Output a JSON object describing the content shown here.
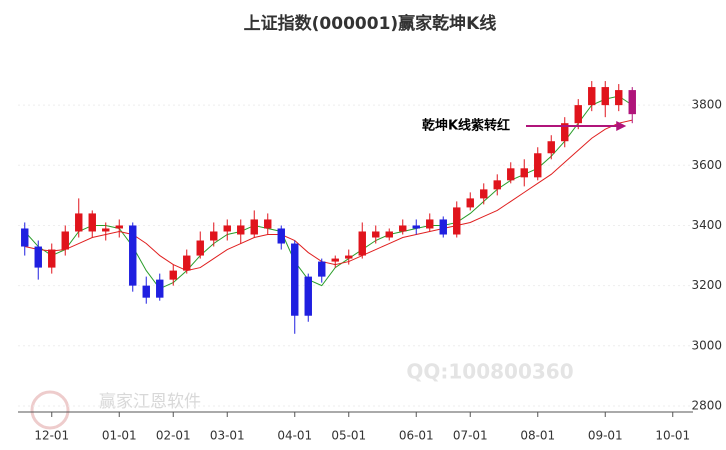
{
  "chart_data": {
    "type": "candlestick",
    "title": "上证指数(000001)赢家乾坤K线",
    "categories": [
      null,
      null,
      "12-01",
      null,
      null,
      null,
      null,
      "01-01",
      null,
      null,
      null,
      "02-01",
      null,
      null,
      null,
      "03-01",
      null,
      null,
      null,
      null,
      "04-01",
      null,
      null,
      null,
      "05-01",
      null,
      null,
      null,
      null,
      "06-01",
      null,
      null,
      null,
      "07-01",
      null,
      null,
      null,
      null,
      "08-01",
      null,
      null,
      null,
      null,
      "09-01",
      null,
      null,
      null,
      null,
      "10-01",
      null
    ],
    "open": [
      3390,
      3330,
      3260,
      3320,
      3380,
      3440,
      3380,
      3390,
      3400,
      3200,
      3160,
      3220,
      3250,
      3300,
      3350,
      3380,
      3400,
      3370,
      3420,
      3390,
      3340,
      3100,
      3230,
      3280,
      3290,
      3300,
      3380,
      3360,
      3380,
      3400,
      3390,
      3420,
      3370,
      3460,
      3490,
      3520,
      3550,
      3590,
      3560,
      3640,
      3680,
      3740,
      3800,
      3860,
      3800,
      3850,
      null,
      null,
      null,
      null
    ],
    "high": [
      3410,
      3350,
      3340,
      3400,
      3490,
      3450,
      3410,
      3420,
      3410,
      3230,
      3240,
      3270,
      3320,
      3380,
      3410,
      3420,
      3420,
      3450,
      3440,
      3400,
      3350,
      3240,
      3290,
      3300,
      3320,
      3410,
      3400,
      3390,
      3420,
      3420,
      3440,
      3430,
      3480,
      3510,
      3540,
      3570,
      3610,
      3620,
      3660,
      3700,
      3760,
      3820,
      3880,
      3880,
      3870,
      3860,
      null,
      null,
      null,
      null
    ],
    "low": [
      3300,
      3220,
      3240,
      3300,
      3360,
      3360,
      3350,
      3360,
      3180,
      3140,
      3150,
      3200,
      3240,
      3290,
      3330,
      3350,
      3340,
      3360,
      3370,
      3320,
      3040,
      3080,
      3210,
      3260,
      3270,
      3290,
      3340,
      3350,
      3370,
      3370,
      3380,
      3360,
      3360,
      3450,
      3470,
      3500,
      3540,
      3530,
      3550,
      3620,
      3660,
      3720,
      3780,
      3760,
      3780,
      3740,
      null,
      null,
      null,
      null
    ],
    "close": [
      3330,
      3260,
      3320,
      3380,
      3440,
      3380,
      3390,
      3400,
      3200,
      3160,
      3220,
      3250,
      3300,
      3350,
      3380,
      3400,
      3370,
      3420,
      3390,
      3340,
      3100,
      3230,
      3280,
      3290,
      3300,
      3380,
      3360,
      3380,
      3400,
      3390,
      3420,
      3370,
      3460,
      3490,
      3520,
      3550,
      3590,
      3560,
      3640,
      3680,
      3740,
      3800,
      3860,
      3800,
      3850,
      3770,
      null,
      null,
      null,
      null
    ],
    "candle_colors": [
      "#1f1fe0",
      "#1f1fe0",
      "#e0141c",
      "#e0141c",
      "#e0141c",
      "#e0141c",
      "#e0141c",
      "#e0141c",
      "#1f1fe0",
      "#1f1fe0",
      "#1f1fe0",
      "#e0141c",
      "#e0141c",
      "#e0141c",
      "#e0141c",
      "#e0141c",
      "#e0141c",
      "#e0141c",
      "#e0141c",
      "#1f1fe0",
      "#1f1fe0",
      "#1f1fe0",
      "#1f1fe0",
      "#e0141c",
      "#e0141c",
      "#e0141c",
      "#e0141c",
      "#e0141c",
      "#e0141c",
      "#1f1fe0",
      "#e0141c",
      "#1f1fe0",
      "#e0141c",
      "#e0141c",
      "#e0141c",
      "#e0141c",
      "#e0141c",
      "#e0141c",
      "#e0141c",
      "#e0141c",
      "#e0141c",
      "#e0141c",
      "#e0141c",
      "#e0141c",
      "#e0141c",
      "#b0147a",
      null,
      null,
      null,
      null
    ],
    "lines": [
      {
        "color": "#2a9d2a",
        "values": [
          3380,
          3330,
          3300,
          3320,
          3380,
          3400,
          3400,
          3390,
          3330,
          3250,
          3190,
          3210,
          3250,
          3300,
          3340,
          3370,
          3380,
          3400,
          3390,
          3380,
          3280,
          3220,
          3200,
          3260,
          3290,
          3320,
          3350,
          3370,
          3380,
          3390,
          3400,
          3400,
          3410,
          3440,
          3480,
          3520,
          3550,
          3570,
          3590,
          3630,
          3680,
          3740,
          3800,
          3820,
          3830,
          3800,
          null,
          null,
          null,
          null
        ]
      },
      {
        "color": "#e02020",
        "values": [
          3330,
          3320,
          3315,
          3320,
          3340,
          3360,
          3370,
          3380,
          3370,
          3340,
          3300,
          3270,
          3250,
          3260,
          3290,
          3320,
          3340,
          3360,
          3370,
          3370,
          3350,
          3310,
          3280,
          3270,
          3280,
          3300,
          3320,
          3340,
          3360,
          3370,
          3380,
          3390,
          3400,
          3410,
          3430,
          3450,
          3480,
          3510,
          3540,
          3570,
          3610,
          3650,
          3690,
          3720,
          3740,
          3750,
          null,
          null,
          null,
          null
        ]
      }
    ],
    "ylim": [
      2780,
      3950
    ],
    "yticks": [
      2800,
      3000,
      3200,
      3400,
      3600,
      3800
    ],
    "annotation": "乾坤K线紫转红",
    "annotation_color": "#b0147a",
    "watermarks": [
      "QQ:100800360",
      "赢家江恩软件"
    ]
  }
}
